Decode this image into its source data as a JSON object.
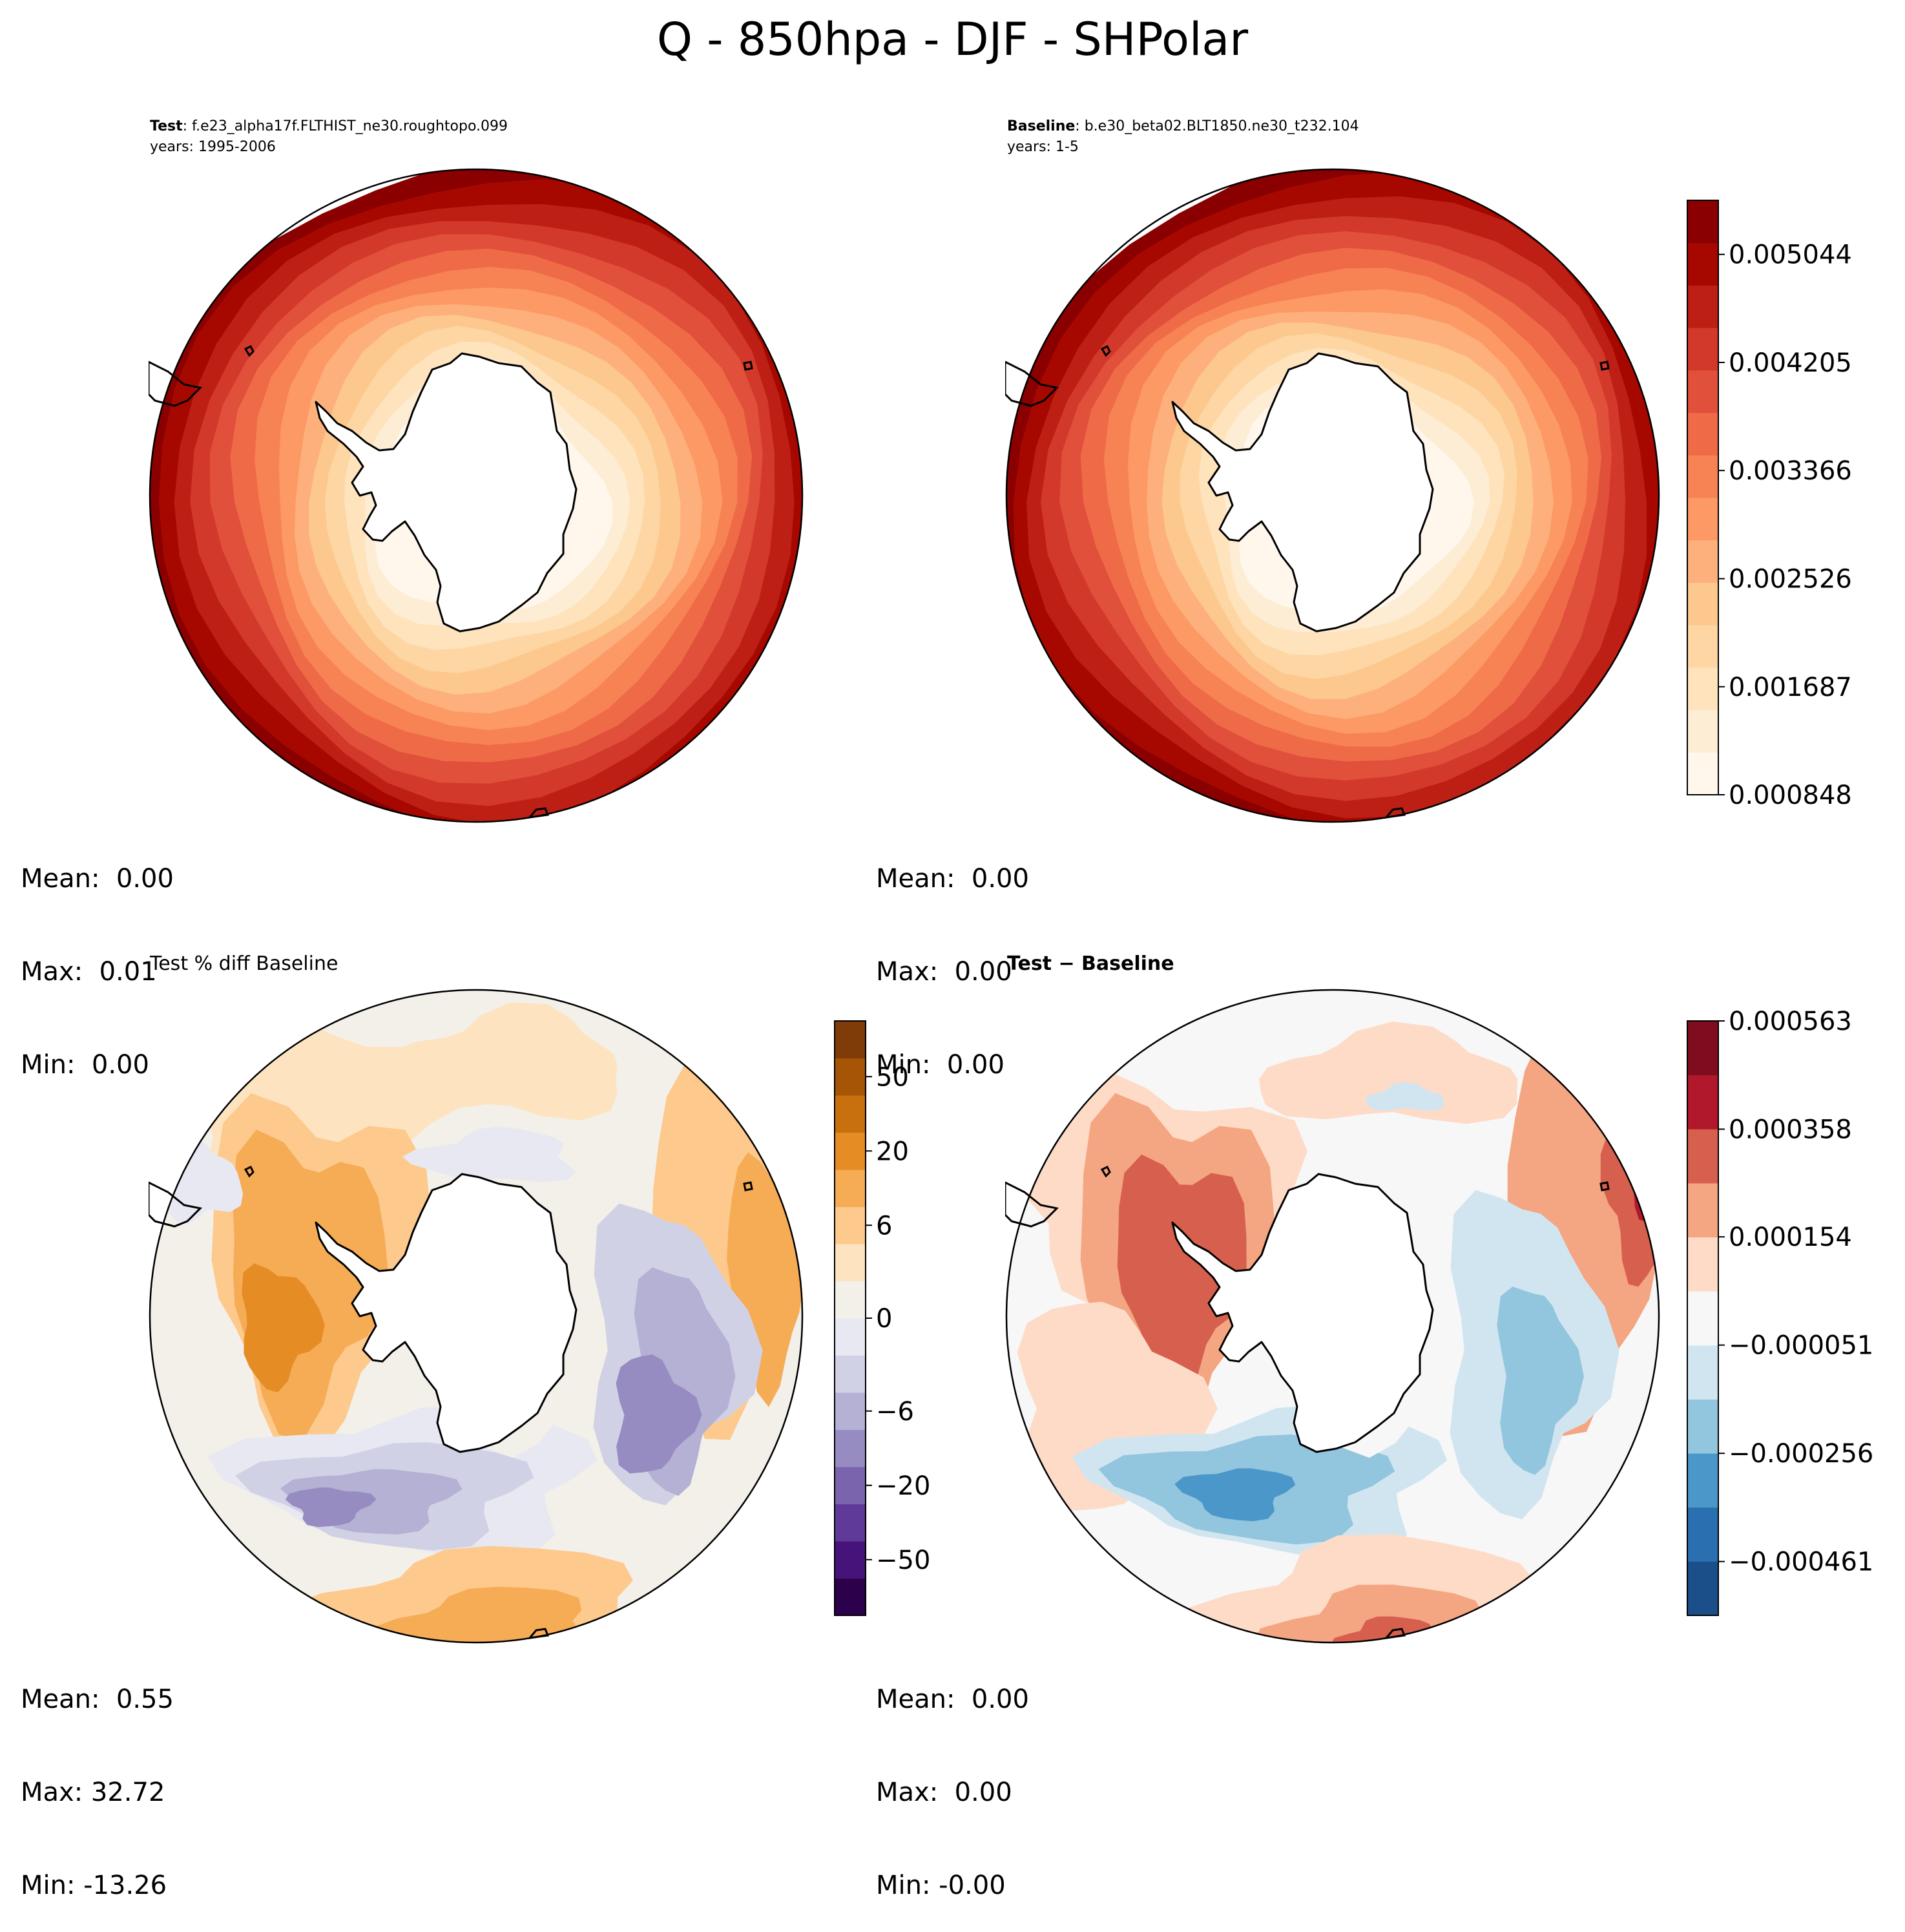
{
  "figure": {
    "title": "Q - 850hpa - DJF - SHPolar",
    "palettes": {
      "OrRd": [
        "#fff7ec",
        "#feedd5",
        "#fee3bd",
        "#fdd6a3",
        "#fdc88d",
        "#fdb07b",
        "#fc9965",
        "#f78254",
        "#ef6a47",
        "#e0503a",
        "#d3392b",
        "#bd1f15",
        "#a60800",
        "#8a0000"
      ],
      "PuOr": [
        "#2d004b",
        "#45137a",
        "#5f3a99",
        "#7a64ad",
        "#968cc1",
        "#b4b1d4",
        "#d1d1e6",
        "#e7e8f1",
        "#f3efe9",
        "#fde3c0",
        "#fdc98c",
        "#f6ab55",
        "#e58c24",
        "#c9700e",
        "#a65406",
        "#7f3b08"
      ],
      "RdBu_r": [
        "#1b4f8a",
        "#2a6fb0",
        "#4b97c9",
        "#92c5de",
        "#d1e5f0",
        "#f7f7f7",
        "#fddbc7",
        "#f4a582",
        "#d6604d",
        "#b2182b",
        "#7f0d1f"
      ]
    }
  },
  "panels": [
    {
      "id": "test",
      "header_bold": "Test",
      "header_rest": ": f.e23_alpha17f.FLTHIST_ne30.roughtopo.099",
      "years": "years: 1995-2006",
      "stats": {
        "mean": "Mean:  0.00",
        "max": "Max:  0.01",
        "min": "Min:  0.00"
      }
    },
    {
      "id": "baseline",
      "header_bold": "Baseline",
      "header_rest": ": b.e30_beta02.BLT1850.ne30_t232.104",
      "years": "years: 1-5",
      "stats": {
        "mean": "Mean:  0.00",
        "max": "Max:  0.00",
        "min": "Min:  0.00"
      }
    },
    {
      "id": "pctdiff",
      "title": "Test % diff Baseline",
      "stats": {
        "mean": "Mean:  0.55",
        "max": "Max: 32.72",
        "min": "Min: -13.26"
      }
    },
    {
      "id": "diff",
      "title_bold": "Test − Baseline",
      "stats": {
        "mean": "Mean:  0.00",
        "max": "Max:  0.00",
        "min": "Min: -0.00"
      }
    }
  ],
  "chart_data": [
    {
      "type": "heatmap",
      "title": "Test",
      "projection": "south-polar-stereographic",
      "colormap": "OrRd",
      "field_pattern": "increasing with distance from pole",
      "colorbar": {
        "vmin": 0.000848,
        "vmax": 0.005464,
        "ticks": [
          "0.000848",
          "0.001687",
          "0.002526",
          "0.003366",
          "0.004205",
          "0.005044"
        ],
        "tick_values": [
          0.000848,
          0.001687,
          0.002526,
          0.003366,
          0.004205,
          0.005044
        ]
      }
    },
    {
      "type": "heatmap",
      "title": "Baseline",
      "projection": "south-polar-stereographic",
      "colormap": "OrRd",
      "field_pattern": "increasing with distance from pole",
      "colorbar": {
        "vmin": 0.000848,
        "vmax": 0.005464,
        "ticks": [
          "0.000848",
          "0.001687",
          "0.002526",
          "0.003366",
          "0.004205",
          "0.005044"
        ],
        "tick_values": [
          0.000848,
          0.001687,
          0.002526,
          0.003366,
          0.004205,
          0.005044
        ]
      }
    },
    {
      "type": "heatmap",
      "title": "Test % diff Baseline",
      "projection": "south-polar-stereographic",
      "colormap": "PuOr_r",
      "colorbar": {
        "levels": 16,
        "ticks": [
          "−50",
          "−20",
          "−6",
          "0",
          "6",
          "20",
          "50"
        ],
        "tick_levels": [
          1.5,
          3.5,
          5.5,
          8,
          10.5,
          12.5,
          14.5
        ]
      }
    },
    {
      "type": "heatmap",
      "title": "Test − Baseline",
      "projection": "south-polar-stereographic",
      "colormap": "RdBu_r",
      "colorbar": {
        "vmin": -0.000563,
        "vmax": 0.000563,
        "ticks": [
          "−0.000461",
          "−0.000256",
          "−0.000051",
          "0.000154",
          "0.000358",
          "0.000563"
        ],
        "tick_values": [
          -0.000461,
          -0.000256,
          -5.1e-05,
          0.000154,
          0.000358,
          0.000563
        ]
      }
    }
  ]
}
